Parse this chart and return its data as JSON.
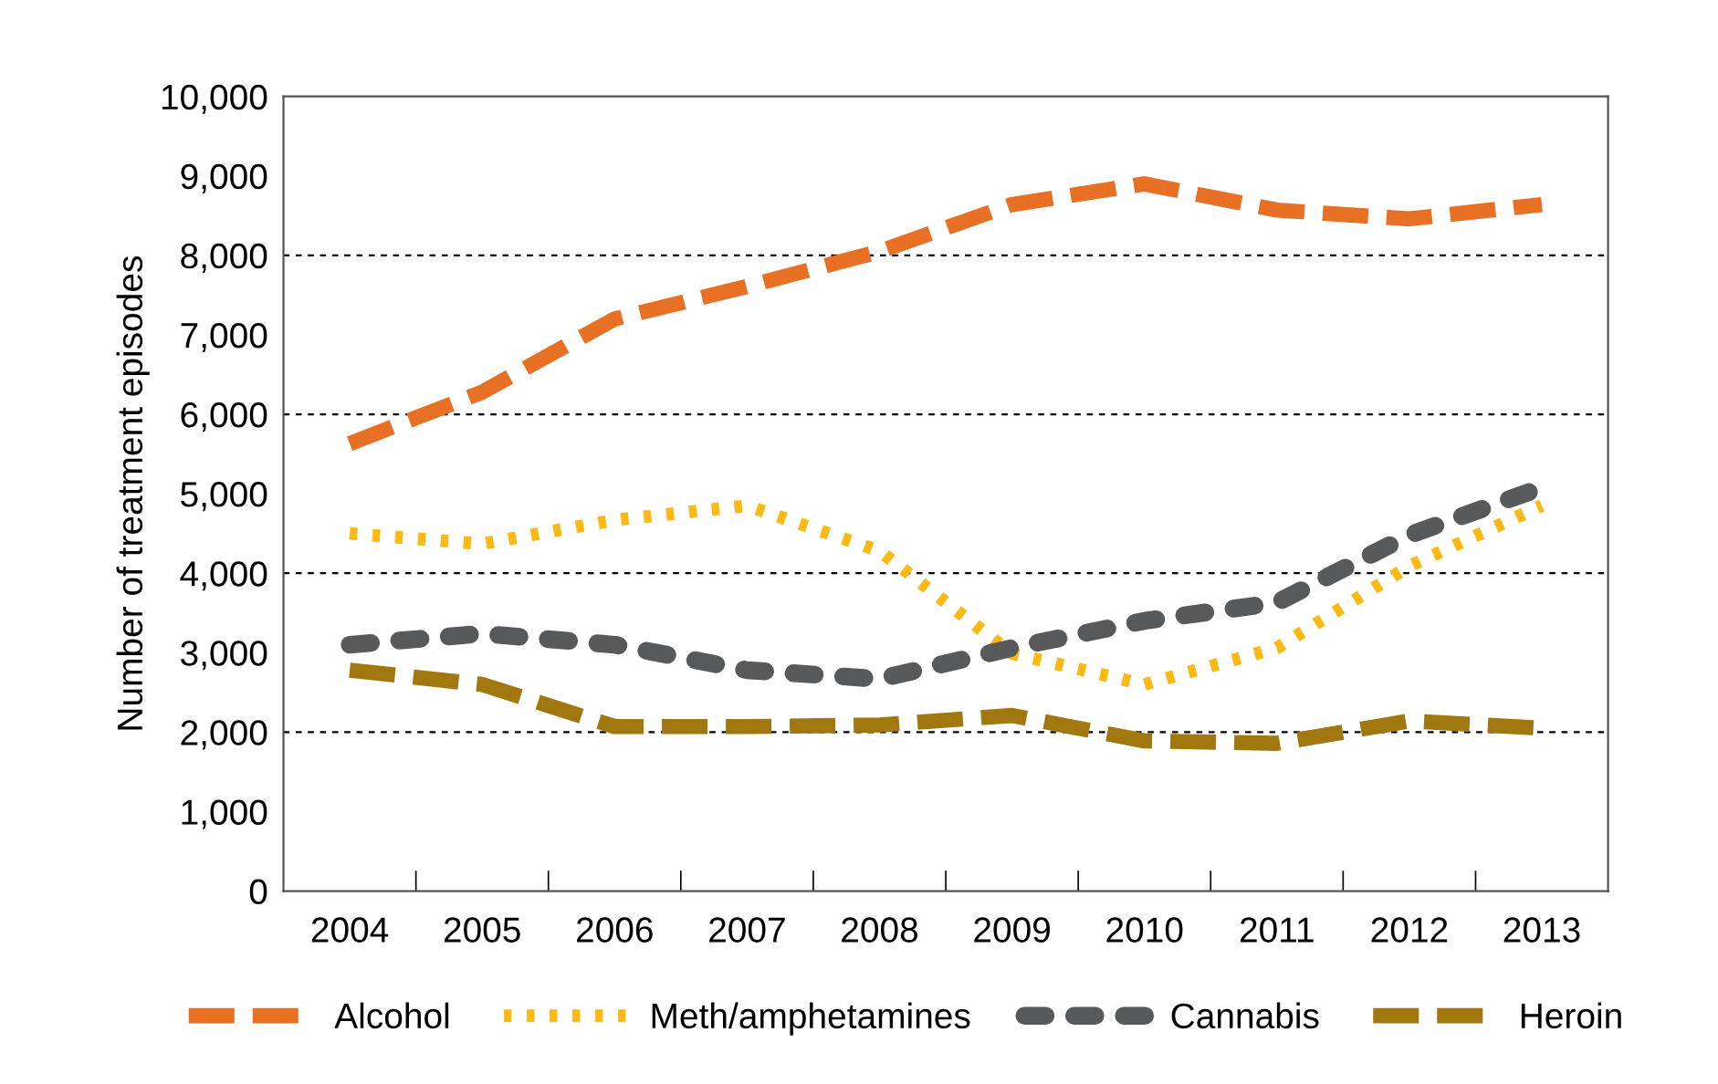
{
  "chart_data": {
    "type": "line",
    "ylabel": "Number of treatment episodes",
    "categories": [
      "2004",
      "2005",
      "2006",
      "2007",
      "2008",
      "2009",
      "2010",
      "2011",
      "2012",
      "2013"
    ],
    "series": [
      {
        "name": "Alcohol",
        "color": "#e87024",
        "line_style": "dashed",
        "values": [
          5630,
          6280,
          7200,
          7610,
          8050,
          8640,
          8900,
          8570,
          8460,
          8640
        ]
      },
      {
        "name": "Meth/amphetamines",
        "color": "#fdb913",
        "line_style": "dotted",
        "values": [
          4500,
          4370,
          4670,
          4850,
          4280,
          2990,
          2600,
          3060,
          4090,
          4850
        ]
      },
      {
        "name": "Cannabis",
        "color": "#58595b",
        "line_style": "dotted",
        "values": [
          3100,
          3240,
          3100,
          2780,
          2670,
          3060,
          3400,
          3630,
          4480,
          5080
        ]
      },
      {
        "name": "Heroin",
        "color": "#a0780f",
        "line_style": "dashed",
        "values": [
          2780,
          2600,
          2070,
          2070,
          2090,
          2210,
          1890,
          1860,
          2140,
          2050
        ]
      }
    ],
    "ylim": [
      0,
      10000
    ],
    "yticks": [
      {
        "value": 0,
        "label": "0"
      },
      {
        "value": 1000,
        "label": "1,000"
      },
      {
        "value": 2000,
        "label": "2,000"
      },
      {
        "value": 3000,
        "label": "3,000"
      },
      {
        "value": 4000,
        "label": "4,000"
      },
      {
        "value": 5000,
        "label": "5,000"
      },
      {
        "value": 6000,
        "label": "6,000"
      },
      {
        "value": 7000,
        "label": "7,000"
      },
      {
        "value": 8000,
        "label": "8,000"
      },
      {
        "value": 9000,
        "label": "9,000"
      },
      {
        "value": 10000,
        "label": "10,000"
      }
    ],
    "ref_lines": [
      {
        "axis": "y",
        "value": 2000,
        "color": "#000000",
        "line_style": "dashed"
      },
      {
        "axis": "y",
        "value": 4000,
        "color": "#000000",
        "line_style": "dashed"
      },
      {
        "axis": "y",
        "value": 6000,
        "color": "#000000",
        "line_style": "dashed"
      },
      {
        "axis": "y",
        "value": 8000,
        "color": "#000000",
        "line_style": "dashed"
      }
    ],
    "grid": false,
    "legend": "bottom",
    "marker": "none"
  }
}
